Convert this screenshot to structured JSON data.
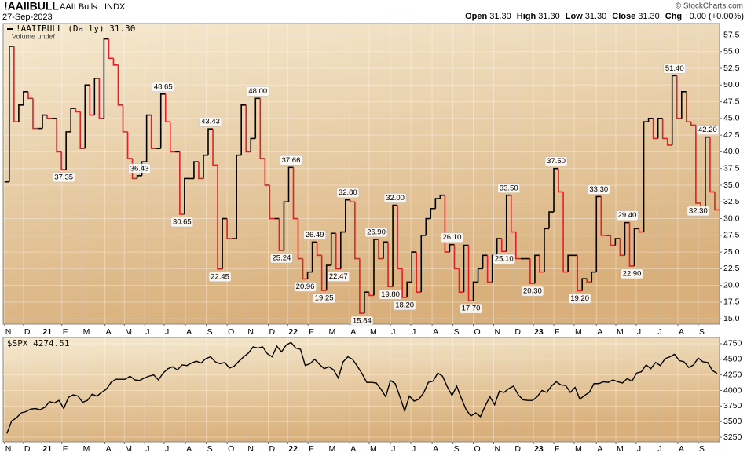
{
  "header": {
    "symbol": "!AAIIBULL",
    "name": "AAII Bulls",
    "exchange": "INDX",
    "date": "27-Sep-2023",
    "credit": "© StockCharts.com",
    "quote": [
      {
        "label": "Open",
        "value": "31.30"
      },
      {
        "label": "High",
        "value": "31.30"
      },
      {
        "label": "Low",
        "value": "31.30"
      },
      {
        "label": "Close",
        "value": "31.30"
      },
      {
        "label": "Chg",
        "value": "+0.00 (+0.00%)"
      }
    ]
  },
  "chart_data": [
    {
      "type": "step",
      "legend": "!AAIIBULL (Daily) 31.30",
      "sublegend": "Volume undef",
      "up_color": "#000000",
      "down_color": "#e0202a",
      "grid": true,
      "values": [
        35.5,
        55.8,
        44.5,
        47,
        49,
        48,
        43.5,
        43.5,
        45.5,
        45,
        45,
        40,
        37.35,
        43,
        46.5,
        46,
        40.5,
        50,
        45.5,
        51,
        45,
        56.9,
        54,
        53,
        47,
        43,
        39,
        36,
        36.43,
        38.5,
        45.5,
        40.5,
        40.5,
        48.65,
        44.5,
        40,
        40,
        30.65,
        36,
        36,
        38.5,
        36,
        39.5,
        43.43,
        38,
        22.45,
        30,
        27,
        27,
        39.5,
        47,
        40,
        42,
        48,
        39,
        35,
        30,
        30,
        25.24,
        32.5,
        37.66,
        30,
        24,
        20.96,
        22,
        26.49,
        24.5,
        19.25,
        23,
        27.8,
        22.47,
        28,
        32.8,
        32.5,
        24,
        15.84,
        19,
        18.5,
        26.9,
        24,
        26.5,
        19.8,
        32,
        22.5,
        18.2,
        20.5,
        25,
        19,
        27.5,
        30,
        31.5,
        33,
        33.5,
        25,
        26.1,
        22.5,
        19,
        26,
        17.7,
        20.5,
        22.5,
        24.5,
        20.5,
        24.5,
        27,
        25.1,
        33.5,
        28,
        24,
        24,
        24,
        20.3,
        24.5,
        22,
        28.5,
        31,
        37.5,
        34,
        22,
        24.5,
        24.5,
        19.2,
        21,
        20.5,
        22,
        33.3,
        27.5,
        27.5,
        26,
        27,
        24.5,
        29.4,
        22.9,
        28.5,
        28,
        44.5,
        45,
        42,
        45,
        42,
        41,
        51.4,
        45,
        49,
        44.5,
        44,
        32.3,
        31,
        42.2,
        34,
        31.3
      ],
      "annotations": [
        {
          "value": 37.35,
          "label": "37.35"
        },
        {
          "value": 36.43,
          "label": "36.43"
        },
        {
          "value": 48.65,
          "label": "48.65"
        },
        {
          "value": 30.65,
          "label": "30.65"
        },
        {
          "value": 43.43,
          "label": "43.43"
        },
        {
          "value": 22.45,
          "label": "22.45"
        },
        {
          "value": 48,
          "label": "48.00"
        },
        {
          "value": 25.24,
          "label": "25.24"
        },
        {
          "value": 37.66,
          "label": "37.66"
        },
        {
          "value": 20.96,
          "label": "20.96"
        },
        {
          "value": 26.49,
          "label": "26.49"
        },
        {
          "value": 19.25,
          "label": "19.25"
        },
        {
          "value": 22.47,
          "label": "22.47"
        },
        {
          "value": 32.8,
          "label": "32.80"
        },
        {
          "value": 15.84,
          "label": "15.84"
        },
        {
          "value": 26.9,
          "label": "26.90"
        },
        {
          "value": 19.8,
          "label": "19.80"
        },
        {
          "value": 32,
          "label": "32.00"
        },
        {
          "value": 18.2,
          "label": "18.20"
        },
        {
          "value": 26.1,
          "label": "26.10"
        },
        {
          "value": 17.7,
          "label": "17.70"
        },
        {
          "value": 25.1,
          "label": "25.10"
        },
        {
          "value": 33.5,
          "label": "33.50"
        },
        {
          "value": 20.3,
          "label": "20.30"
        },
        {
          "value": 37.5,
          "label": "37.50"
        },
        {
          "value": 19.2,
          "label": "19.20"
        },
        {
          "value": 33.3,
          "label": "33.30"
        },
        {
          "value": 29.4,
          "label": "29.40"
        },
        {
          "value": 22.9,
          "label": "22.90"
        },
        {
          "value": 51.4,
          "label": "51.40"
        },
        {
          "value": 32.3,
          "label": "32.30"
        },
        {
          "value": 42.2,
          "label": "42.20"
        }
      ],
      "xlim": [
        -0.3,
        151
      ],
      "xticks": [
        {
          "value": 0,
          "label": "N"
        },
        {
          "value": 4,
          "label": "D"
        },
        {
          "value": 7.9,
          "label": "21"
        },
        {
          "value": 12.1,
          "label": "F"
        },
        {
          "value": 16.4,
          "label": "M"
        },
        {
          "value": 21.2,
          "label": "A"
        },
        {
          "value": 25.3,
          "label": "M"
        },
        {
          "value": 29.6,
          "label": "J"
        },
        {
          "value": 33.7,
          "label": "J"
        },
        {
          "value": 38.2,
          "label": "A"
        },
        {
          "value": 42.6,
          "label": "S"
        },
        {
          "value": 47,
          "label": "O"
        },
        {
          "value": 51.2,
          "label": "N"
        },
        {
          "value": 55.7,
          "label": "D"
        },
        {
          "value": 59.8,
          "label": "22"
        },
        {
          "value": 64.1,
          "label": "F"
        },
        {
          "value": 68.3,
          "label": "M"
        },
        {
          "value": 72.9,
          "label": "A"
        },
        {
          "value": 77,
          "label": "M"
        },
        {
          "value": 81.5,
          "label": "J"
        },
        {
          "value": 85.8,
          "label": "J"
        },
        {
          "value": 90.3,
          "label": "A"
        },
        {
          "value": 94.7,
          "label": "S"
        },
        {
          "value": 99,
          "label": "O"
        },
        {
          "value": 103.3,
          "label": "N"
        },
        {
          "value": 107.6,
          "label": "D"
        },
        {
          "value": 111.7,
          "label": "23"
        },
        {
          "value": 116,
          "label": "F"
        },
        {
          "value": 120.3,
          "label": "M"
        },
        {
          "value": 125,
          "label": "A"
        },
        {
          "value": 129.1,
          "label": "M"
        },
        {
          "value": 133.4,
          "label": "J"
        },
        {
          "value": 137.8,
          "label": "J"
        },
        {
          "value": 142.2,
          "label": "A"
        },
        {
          "value": 146.5,
          "label": "S"
        }
      ],
      "ylim": [
        14.2,
        59.2
      ],
      "yticks": [
        {
          "value": 15,
          "label": "15.0"
        },
        {
          "value": 17.5,
          "label": "17.5"
        },
        {
          "value": 20,
          "label": "20.0"
        },
        {
          "value": 22.5,
          "label": "22.5"
        },
        {
          "value": 25,
          "label": "25.0"
        },
        {
          "value": 27.5,
          "label": "27.5"
        },
        {
          "value": 30,
          "label": "30.0"
        },
        {
          "value": 32.5,
          "label": "32.5"
        },
        {
          "value": 35,
          "label": "35.0"
        },
        {
          "value": 37.5,
          "label": "37.5"
        },
        {
          "value": 40,
          "label": "40.0"
        },
        {
          "value": 42.5,
          "label": "42.5"
        },
        {
          "value": 45,
          "label": "45.0"
        },
        {
          "value": 47.5,
          "label": "47.5"
        },
        {
          "value": 50,
          "label": "50.0"
        },
        {
          "value": 52.5,
          "label": "52.5"
        },
        {
          "value": 55,
          "label": "55.0"
        },
        {
          "value": 57.5,
          "label": "57.5"
        }
      ]
    },
    {
      "type": "line",
      "legend": "$SPX 4274.51",
      "color": "#000000",
      "grid": true,
      "values": [
        3310,
        3510,
        3560,
        3640,
        3660,
        3700,
        3710,
        3690,
        3730,
        3820,
        3800,
        3840,
        3710,
        3890,
        3930,
        3910,
        3810,
        3840,
        3940,
        3910,
        3970,
        4020,
        4130,
        4180,
        4180,
        4180,
        4230,
        4170,
        4160,
        4200,
        4230,
        4250,
        4170,
        4280,
        4350,
        4380,
        4330,
        4410,
        4400,
        4440,
        4470,
        4440,
        4510,
        4540,
        4460,
        4430,
        4450,
        4360,
        4390,
        4470,
        4540,
        4600,
        4700,
        4680,
        4700,
        4590,
        4540,
        4710,
        4620,
        4730,
        4770,
        4680,
        4660,
        4400,
        4430,
        4500,
        4420,
        4350,
        4380,
        4330,
        4200,
        4460,
        4540,
        4500,
        4390,
        4270,
        4130,
        4130,
        4120,
        4020,
        3900,
        4160,
        4110,
        3900,
        3670,
        3910,
        3830,
        3860,
        3960,
        4130,
        4150,
        4280,
        4230,
        4060,
        3920,
        4070,
        3870,
        3690,
        3590,
        3640,
        3580,
        3750,
        3900,
        3770,
        3990,
        3970,
        4030,
        4070,
        3930,
        3850,
        3840,
        3840,
        3900,
        4000,
        3970,
        4070,
        4140,
        4090,
        4080,
        3970,
        4050,
        3860,
        3920,
        3970,
        4110,
        4110,
        4140,
        4130,
        4170,
        4140,
        4120,
        4190,
        4150,
        4280,
        4300,
        4410,
        4350,
        4450,
        4400,
        4510,
        4540,
        4580,
        4480,
        4460,
        4370,
        4410,
        4520,
        4460,
        4450,
        4320,
        4274.51
      ],
      "xlim": [
        -0.3,
        151
      ],
      "xticks": [
        {
          "value": 0,
          "label": "N"
        },
        {
          "value": 4,
          "label": "D"
        },
        {
          "value": 7.9,
          "label": "21"
        },
        {
          "value": 12.1,
          "label": "F"
        },
        {
          "value": 16.4,
          "label": "M"
        },
        {
          "value": 21.2,
          "label": "A"
        },
        {
          "value": 25.3,
          "label": "M"
        },
        {
          "value": 29.6,
          "label": "J"
        },
        {
          "value": 33.7,
          "label": "J"
        },
        {
          "value": 38.2,
          "label": "A"
        },
        {
          "value": 42.6,
          "label": "S"
        },
        {
          "value": 47,
          "label": "O"
        },
        {
          "value": 51.2,
          "label": "N"
        },
        {
          "value": 55.7,
          "label": "D"
        },
        {
          "value": 59.8,
          "label": "22"
        },
        {
          "value": 64.1,
          "label": "F"
        },
        {
          "value": 68.3,
          "label": "M"
        },
        {
          "value": 72.9,
          "label": "A"
        },
        {
          "value": 77,
          "label": "M"
        },
        {
          "value": 81.5,
          "label": "J"
        },
        {
          "value": 85.8,
          "label": "J"
        },
        {
          "value": 90.3,
          "label": "A"
        },
        {
          "value": 94.7,
          "label": "S"
        },
        {
          "value": 99,
          "label": "O"
        },
        {
          "value": 103.3,
          "label": "N"
        },
        {
          "value": 107.6,
          "label": "D"
        },
        {
          "value": 111.7,
          "label": "23"
        },
        {
          "value": 116,
          "label": "F"
        },
        {
          "value": 120.3,
          "label": "M"
        },
        {
          "value": 125,
          "label": "A"
        },
        {
          "value": 129.1,
          "label": "M"
        },
        {
          "value": 133.4,
          "label": "J"
        },
        {
          "value": 137.8,
          "label": "J"
        },
        {
          "value": 142.2,
          "label": "A"
        },
        {
          "value": 146.5,
          "label": "S"
        }
      ],
      "ylim": [
        3175,
        4850
      ],
      "yticks": [
        3250,
        3500,
        3750,
        4000,
        4250,
        4500,
        4750
      ]
    }
  ]
}
